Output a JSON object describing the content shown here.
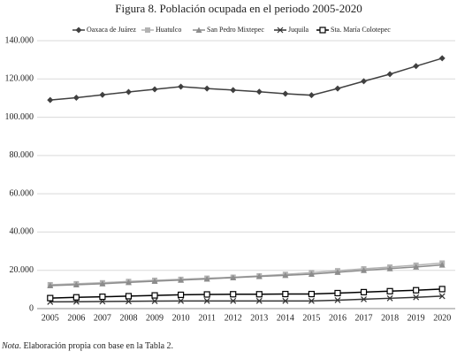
{
  "chart_data": {
    "type": "line",
    "title": "Figura 8. Población ocupada en el periodo 2005-2020",
    "categories": [
      "2005",
      "2006",
      "2007",
      "2008",
      "2009",
      "2010",
      "2011",
      "2012",
      "2013",
      "2014",
      "2015",
      "2016",
      "2017",
      "2018",
      "2019",
      "2020"
    ],
    "series": [
      {
        "name": "Oaxaca de Juárez",
        "color": "#404040",
        "marker": "diamond",
        "values": [
          109000,
          110200,
          111700,
          113200,
          114600,
          116000,
          115000,
          114200,
          113300,
          112300,
          111500,
          115000,
          118800,
          122500,
          126700,
          130800
        ]
      },
      {
        "name": "Huatulco",
        "color": "#b3b3b3",
        "marker": "square",
        "values": [
          12500,
          13000,
          13500,
          14200,
          14800,
          15300,
          15900,
          16400,
          17100,
          17900,
          18800,
          19800,
          20800,
          21700,
          22700,
          23800
        ]
      },
      {
        "name": "San Pedro Mixtepec",
        "color": "#8c8c8c",
        "marker": "triangle",
        "values": [
          12000,
          12500,
          13000,
          13700,
          14300,
          14900,
          15500,
          16200,
          16800,
          17400,
          18000,
          19000,
          20000,
          20900,
          21800,
          22800
        ]
      },
      {
        "name": "Juquila",
        "color": "#333333",
        "marker": "cross",
        "values": [
          3500,
          3600,
          3700,
          3800,
          3900,
          4000,
          4000,
          4000,
          4000,
          4000,
          4000,
          4400,
          4900,
          5400,
          5900,
          6500
        ]
      },
      {
        "name": "Sta. María Colotepec",
        "color": "#000000",
        "marker": "open-square",
        "values": [
          5500,
          5900,
          6200,
          6500,
          6900,
          7200,
          7400,
          7500,
          7500,
          7600,
          7600,
          8100,
          8600,
          9100,
          9600,
          10200
        ]
      }
    ],
    "ylim": [
      0,
      140000
    ],
    "yticks": [
      0,
      {
        "value": 20000,
        "label": "20.000"
      },
      {
        "value": 40000,
        "label": "40.000"
      },
      {
        "value": 60000,
        "label": "60.000"
      },
      {
        "value": 80000,
        "label": "80.000"
      },
      {
        "value": 100000,
        "label": "100.000"
      },
      {
        "value": 120000,
        "label": "120.000"
      },
      {
        "value": 140000,
        "label": "140.000"
      }
    ],
    "grid": true,
    "legend": "top",
    "note_label": "Nota",
    "note_text": ". Elaboración propia con base en la Tabla 2."
  }
}
